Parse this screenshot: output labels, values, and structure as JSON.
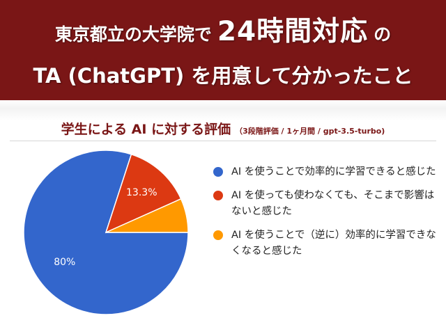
{
  "banner": {
    "line1_prefix": "東京都立の大学院で",
    "line1_emphasis": "24時間対応",
    "line1_suffix": "の",
    "line2": "TA (ChatGPT) を用意して分かったこと",
    "background": "#7a1616",
    "text_color": "#ffffff"
  },
  "chart_data": {
    "type": "pie",
    "title": "学生による AI に対する評価",
    "subtitle": "（3段階評価 / 1ヶ月間 / gpt-3.5-turbo)",
    "title_color": "#7a1616",
    "slices": [
      {
        "label": "AI を使うことで効率的に学習できると感じた",
        "value": 80,
        "data_label": "80%",
        "color": "#3366cc"
      },
      {
        "label": "AI を使っても使わなくても、そこまで影響はないと感じた",
        "value": 13.3,
        "data_label": "13.3%",
        "color": "#dc3912"
      },
      {
        "label": "AI を使うことで（逆に）効率的に学習できなくなると感じた",
        "value": 6.7,
        "data_label": "",
        "color": "#ff9900"
      }
    ],
    "start": "3 o'clock",
    "direction": "clockwise",
    "legend_position": "right"
  }
}
